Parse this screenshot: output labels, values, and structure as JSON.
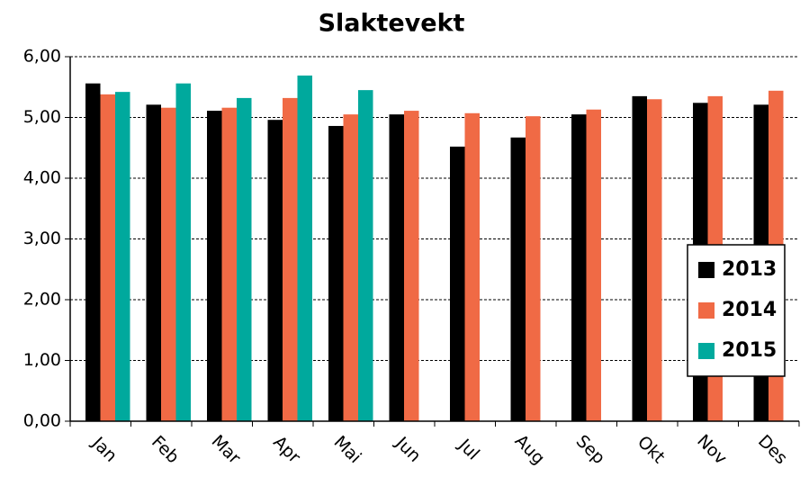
{
  "chart_data": {
    "type": "bar",
    "title": "Slaktevekt",
    "categories": [
      "Jan",
      "Feb",
      "Mar",
      "Apr",
      "Mai",
      "Jun",
      "Jul",
      "Aug",
      "Sep",
      "Okt",
      "Nov",
      "Des"
    ],
    "series": [
      {
        "name": "2013",
        "color": "#000000",
        "values": [
          5.56,
          5.21,
          5.11,
          4.96,
          4.86,
          5.05,
          4.52,
          4.67,
          5.05,
          5.35,
          5.24,
          5.21
        ]
      },
      {
        "name": "2014",
        "color": "#f06a45",
        "values": [
          5.38,
          5.16,
          5.16,
          5.32,
          5.05,
          5.11,
          5.07,
          5.02,
          5.13,
          5.3,
          5.35,
          5.44
        ]
      },
      {
        "name": "2015",
        "color": "#00a99d",
        "values": [
          5.42,
          5.56,
          5.32,
          5.69,
          5.45,
          null,
          null,
          null,
          null,
          null,
          null,
          null
        ]
      }
    ],
    "ylim": [
      0,
      6
    ],
    "yticks": [
      {
        "value": 0,
        "label": "0,00"
      },
      {
        "value": 1,
        "label": "1,00"
      },
      {
        "value": 2,
        "label": "2,00"
      },
      {
        "value": 3,
        "label": "3,00"
      },
      {
        "value": 4,
        "label": "4,00"
      },
      {
        "value": 5,
        "label": "5,00"
      },
      {
        "value": 6,
        "label": "6,00"
      }
    ],
    "grid": true,
    "legend": "right"
  }
}
